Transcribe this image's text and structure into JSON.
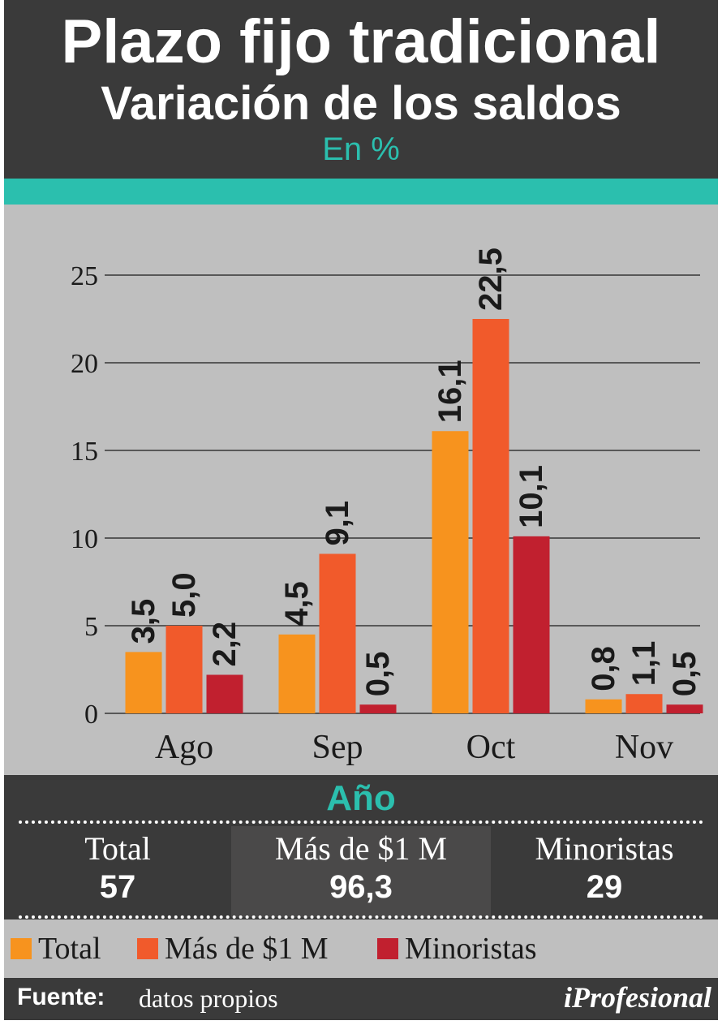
{
  "header": {
    "title": "Plazo fijo tradicional",
    "subtitle": "Variación de los saldos",
    "unit": "En %"
  },
  "colors": {
    "background": "#3a3a3a",
    "accent": "#2bbfae",
    "plot_bg": "#bfbfbf",
    "total": "#f7931e",
    "mas_de_1m": "#f15a2b",
    "minoristas": "#c1202f"
  },
  "chart_data": {
    "type": "bar",
    "categories": [
      "Ago",
      "Sep",
      "Oct",
      "Nov"
    ],
    "series": [
      {
        "name": "Total",
        "values": [
          3.5,
          4.5,
          16.1,
          0.8
        ],
        "labels": [
          "3,5",
          "4,5",
          "16,1",
          "0,8"
        ],
        "color": "#f7931e"
      },
      {
        "name": "Más de $1 M",
        "values": [
          5.0,
          9.1,
          22.5,
          1.1
        ],
        "labels": [
          "5,0",
          "9,1",
          "22,5",
          "1,1"
        ],
        "color": "#f15a2b"
      },
      {
        "name": "Minoristas",
        "values": [
          2.2,
          0.5,
          10.1,
          0.5
        ],
        "labels": [
          "2,2",
          "0,5",
          "10,1",
          "0,5"
        ],
        "color": "#c1202f"
      }
    ],
    "yticks": [
      "0",
      "5",
      "10",
      "15",
      "20",
      "25"
    ],
    "ylim": [
      0,
      25
    ],
    "grid": true,
    "legend_position": "bottom"
  },
  "year": {
    "title": "Año",
    "cells": [
      {
        "label": "Total",
        "value": "57"
      },
      {
        "label": "Más de $1 M",
        "value": "96,3"
      },
      {
        "label": "Minoristas",
        "value": "29"
      }
    ]
  },
  "legend": {
    "items": [
      "Total",
      "Más de $1 M",
      "Minoristas"
    ]
  },
  "footer": {
    "source_key": "Fuente:",
    "source_value": "datos propios",
    "brand": "iProfesional"
  }
}
